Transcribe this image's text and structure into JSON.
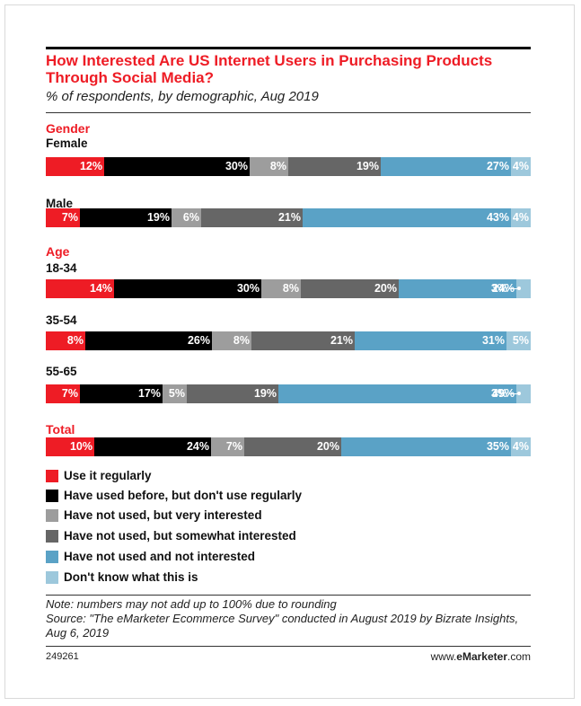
{
  "chart_data": {
    "type": "bar",
    "orientation": "horizontal",
    "stacked": true,
    "title": "How Interested Are US Internet Users in Purchasing Products Through Social Media?",
    "subtitle": "% of respondents, by demographic, Aug 2019",
    "groups": [
      {
        "name": "Gender",
        "rows": [
          {
            "label": "Female",
            "values": [
              12,
              30,
              8,
              19,
              27,
              4
            ],
            "labels": [
              "12%",
              "30%",
              "8%",
              "19%",
              "27%",
              "4%"
            ]
          },
          {
            "label": "Male",
            "values": [
              7,
              19,
              6,
              21,
              43,
              4
            ],
            "labels": [
              "7%",
              "19%",
              "6%",
              "21%",
              "43%",
              "4%"
            ]
          }
        ]
      },
      {
        "name": "Age",
        "rows": [
          {
            "label": "18-34",
            "values": [
              14,
              30,
              8,
              20,
              24,
              3
            ],
            "labels": [
              "14%",
              "30%",
              "8%",
              "20%",
              "24%",
              "3%"
            ],
            "last_outside": true
          },
          {
            "label": "35-54",
            "values": [
              8,
              26,
              8,
              21,
              31,
              5
            ],
            "labels": [
              "8%",
              "26%",
              "8%",
              "21%",
              "31%",
              "5%"
            ]
          },
          {
            "label": "55-65",
            "values": [
              7,
              17,
              5,
              19,
              49,
              3
            ],
            "labels": [
              "7%",
              "17%",
              "5%",
              "19%",
              "49%",
              "3%"
            ],
            "last_outside": true
          }
        ]
      },
      {
        "name": "Total",
        "rows": [
          {
            "label": "",
            "values": [
              10,
              24,
              7,
              20,
              35,
              4
            ],
            "labels": [
              "10%",
              "24%",
              "7%",
              "20%",
              "35%",
              "4%"
            ]
          }
        ]
      }
    ],
    "series": [
      {
        "name": "Use it regularly",
        "color": "#ee1c25"
      },
      {
        "name": "Have used before, but don't use regularly",
        "color": "#000000"
      },
      {
        "name": "Have not used, but very interested",
        "color": "#9d9d9d"
      },
      {
        "name": "Have not used, but somewhat interested",
        "color": "#666666"
      },
      {
        "name": "Have not used and not interested",
        "color": "#5aa2c6"
      },
      {
        "name": "Don't know what this is",
        "color": "#9dc8dc"
      }
    ],
    "legend_position": "bottom"
  },
  "footer": {
    "note": "Note: numbers may not add up to 100% due to rounding",
    "source": "Source: \"The eMarketer Ecommerce Survey\" conducted in August 2019 by Bizrate Insights, Aug 6, 2019",
    "chart_id": "249261",
    "brand_prefix": "www.",
    "brand_name": "eMarketer",
    "brand_suffix": ".com"
  }
}
